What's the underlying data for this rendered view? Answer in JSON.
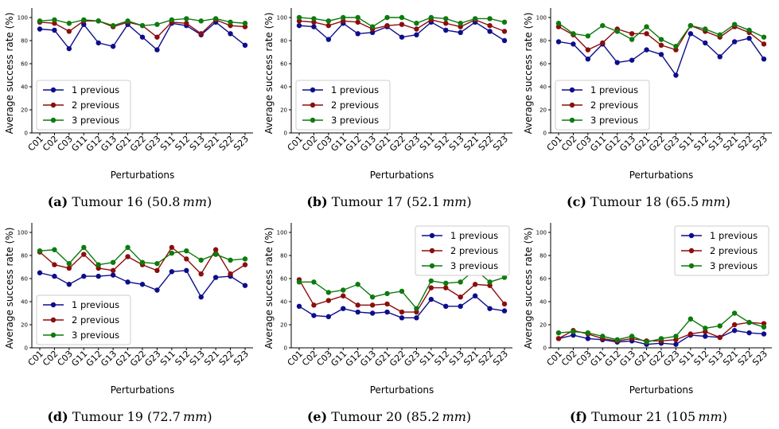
{
  "colors": {
    "s1": "#0d0d8c",
    "s2": "#8c0d0d",
    "s3": "#0d7a0d",
    "axis": "#000000"
  },
  "chart_data": [
    {
      "type": "line",
      "caption_letter": "(a)",
      "caption_text": "Tumour 16",
      "caption_value": "(50.8",
      "caption_unit": "mm",
      "xlabel": "Perturbations",
      "ylabel": "Average success rate (%)",
      "ylim": [
        0,
        100
      ],
      "yticks": [
        "0",
        "20",
        "40",
        "60",
        "80",
        "100"
      ],
      "legend": "lower-left",
      "categories": [
        "C01",
        "C02",
        "C03",
        "G11",
        "G12",
        "G13",
        "G21",
        "G22",
        "G23",
        "S11",
        "S12",
        "S13",
        "S21",
        "S22",
        "S23"
      ],
      "series": [
        {
          "name": "1 previous",
          "values": [
            90,
            89,
            73,
            94,
            78,
            75,
            94,
            83,
            72,
            95,
            93,
            85,
            96,
            86,
            76
          ]
        },
        {
          "name": "2 previous",
          "values": [
            96,
            95,
            88,
            97,
            97,
            92,
            96,
            93,
            83,
            96,
            95,
            86,
            98,
            93,
            92
          ]
        },
        {
          "name": "3 previous",
          "values": [
            97,
            98,
            95,
            98,
            97,
            93,
            97,
            93,
            94,
            98,
            99,
            97,
            99,
            96,
            95
          ]
        }
      ]
    },
    {
      "type": "line",
      "caption_letter": "(b)",
      "caption_text": "Tumour 17",
      "caption_value": "(52.1",
      "caption_unit": "mm",
      "xlabel": "Perturbations",
      "ylabel": "Average success rate (%)",
      "ylim": [
        0,
        100
      ],
      "yticks": [
        "0",
        "20",
        "40",
        "60",
        "80",
        "100"
      ],
      "legend": "lower-left",
      "categories": [
        "C01",
        "C02",
        "C03",
        "G11",
        "G12",
        "G13",
        "G21",
        "G22",
        "G23",
        "S11",
        "S12",
        "S13",
        "S21",
        "S22",
        "S23"
      ],
      "series": [
        {
          "name": "1 previous",
          "values": [
            93,
            92,
            81,
            95,
            86,
            87,
            92,
            83,
            85,
            96,
            89,
            87,
            96,
            88,
            80
          ]
        },
        {
          "name": "2 previous",
          "values": [
            97,
            96,
            93,
            97,
            96,
            90,
            93,
            94,
            90,
            98,
            95,
            92,
            98,
            93,
            88
          ]
        },
        {
          "name": "3 previous",
          "values": [
            100,
            99,
            97,
            100,
            100,
            92,
            100,
            100,
            95,
            100,
            99,
            95,
            99,
            99,
            96
          ]
        }
      ]
    },
    {
      "type": "line",
      "caption_letter": "(c)",
      "caption_text": "Tumour 18",
      "caption_value": "(65.5",
      "caption_unit": "mm",
      "xlabel": "Perturbations",
      "ylabel": "Average success rate (%)",
      "ylim": [
        0,
        100
      ],
      "yticks": [
        "0",
        "20",
        "40",
        "60",
        "80",
        "100"
      ],
      "legend": "lower-left",
      "categories": [
        "C01",
        "C02",
        "C03",
        "G11",
        "G12",
        "G13",
        "G21",
        "G22",
        "G23",
        "S11",
        "S12",
        "S13",
        "S21",
        "S22",
        "S23"
      ],
      "series": [
        {
          "name": "1 previous",
          "values": [
            79,
            77,
            64,
            77,
            61,
            63,
            72,
            68,
            50,
            86,
            78,
            66,
            79,
            82,
            64
          ]
        },
        {
          "name": "2 previous",
          "values": [
            92,
            85,
            72,
            78,
            90,
            86,
            86,
            76,
            72,
            93,
            88,
            83,
            92,
            87,
            77
          ]
        },
        {
          "name": "3 previous",
          "values": [
            95,
            86,
            84,
            93,
            88,
            81,
            92,
            81,
            75,
            93,
            90,
            85,
            94,
            89,
            83
          ]
        }
      ]
    },
    {
      "type": "line",
      "caption_letter": "(d)",
      "caption_text": "Tumour 19",
      "caption_value": "(72.7",
      "caption_unit": "mm",
      "xlabel": "Perturbations",
      "ylabel": "Average success rate (%)",
      "ylim": [
        0,
        100
      ],
      "yticks": [
        "0",
        "20",
        "40",
        "60",
        "80",
        "100"
      ],
      "legend": "lower-left",
      "categories": [
        "C01",
        "C02",
        "C03",
        "G11",
        "G12",
        "G13",
        "G21",
        "G22",
        "G23",
        "S11",
        "S12",
        "S13",
        "S21",
        "S22",
        "S23"
      ],
      "series": [
        {
          "name": "1 previous",
          "values": [
            65,
            62,
            55,
            62,
            62,
            63,
            57,
            55,
            50,
            66,
            67,
            44,
            61,
            62,
            54
          ]
        },
        {
          "name": "2 previous",
          "values": [
            83,
            72,
            69,
            81,
            69,
            67,
            79,
            72,
            67,
            87,
            77,
            64,
            85,
            64,
            72
          ]
        },
        {
          "name": "3 previous",
          "values": [
            84,
            85,
            73,
            87,
            72,
            74,
            87,
            74,
            73,
            82,
            84,
            76,
            81,
            76,
            77
          ]
        }
      ]
    },
    {
      "type": "line",
      "caption_letter": "(e)",
      "caption_text": "Tumour 20",
      "caption_value": "(85.2",
      "caption_unit": "mm",
      "xlabel": "Perturbations",
      "ylabel": "Average success rate (%)",
      "ylim": [
        0,
        100
      ],
      "yticks": [
        "0",
        "20",
        "40",
        "60",
        "80",
        "100"
      ],
      "legend": "upper-right",
      "categories": [
        "C01",
        "C02",
        "C03",
        "G11",
        "G12",
        "G13",
        "G21",
        "G22",
        "G23",
        "S11",
        "S12",
        "S13",
        "S21",
        "S22",
        "S23"
      ],
      "series": [
        {
          "name": "1 previous",
          "values": [
            36,
            28,
            27,
            34,
            31,
            30,
            31,
            26,
            26,
            42,
            36,
            36,
            45,
            34,
            32
          ]
        },
        {
          "name": "2 previous",
          "values": [
            59,
            37,
            41,
            45,
            37,
            37,
            38,
            31,
            31,
            52,
            52,
            44,
            55,
            54,
            38
          ]
        },
        {
          "name": "3 previous",
          "values": [
            57,
            57,
            48,
            50,
            55,
            44,
            47,
            49,
            34,
            58,
            56,
            57,
            68,
            57,
            61
          ]
        }
      ]
    },
    {
      "type": "line",
      "caption_letter": "(f)",
      "caption_text": "Tumour 21",
      "caption_value": "(105",
      "caption_unit": "mm",
      "xlabel": "Perturbations",
      "ylabel": "Average success rate (%)",
      "ylim": [
        0,
        100
      ],
      "yticks": [
        "0",
        "20",
        "40",
        "60",
        "80",
        "100"
      ],
      "legend": "upper-right",
      "categories": [
        "C01",
        "C02",
        "C03",
        "G11",
        "G12",
        "G13",
        "G21",
        "G22",
        "G23",
        "S11",
        "S12",
        "S13",
        "S21",
        "S22",
        "S23"
      ],
      "series": [
        {
          "name": "1 previous",
          "values": [
            8,
            11,
            8,
            7,
            5,
            6,
            3,
            4,
            3,
            11,
            10,
            9,
            15,
            13,
            12
          ]
        },
        {
          "name": "2 previous",
          "values": [
            8,
            15,
            12,
            8,
            6,
            8,
            6,
            6,
            7,
            12,
            14,
            9,
            20,
            22,
            21
          ]
        },
        {
          "name": "3 previous",
          "values": [
            13,
            14,
            13,
            10,
            7,
            10,
            5,
            8,
            10,
            25,
            17,
            19,
            30,
            22,
            18
          ]
        }
      ]
    }
  ]
}
